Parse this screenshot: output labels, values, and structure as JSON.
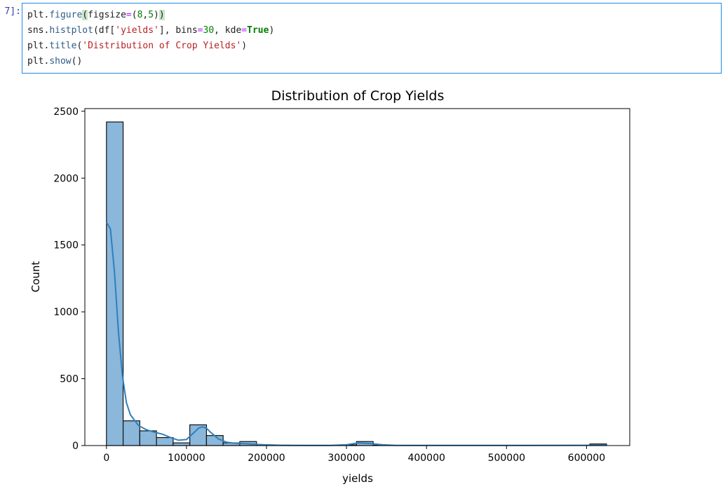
{
  "cell": {
    "prompt": "7]:",
    "lines": [
      [
        {
          "t": "plt",
          "c": ""
        },
        {
          "t": ".",
          "c": ""
        },
        {
          "t": "figure",
          "c": "fn"
        },
        {
          "t": "(",
          "c": "pmatch"
        },
        {
          "t": "figsize",
          "c": ""
        },
        {
          "t": "=",
          "c": "op"
        },
        {
          "t": "(",
          "c": ""
        },
        {
          "t": "8",
          "c": "num"
        },
        {
          "t": ",",
          "c": ""
        },
        {
          "t": "5",
          "c": "num"
        },
        {
          "t": ")",
          "c": ""
        },
        {
          "t": ")",
          "c": "pmatch"
        }
      ],
      [
        {
          "t": "sns",
          "c": ""
        },
        {
          "t": ".",
          "c": ""
        },
        {
          "t": "histplot",
          "c": "fn"
        },
        {
          "t": "(df[",
          "c": ""
        },
        {
          "t": "'yields'",
          "c": "str"
        },
        {
          "t": "], bins",
          "c": ""
        },
        {
          "t": "=",
          "c": "op"
        },
        {
          "t": "30",
          "c": "num"
        },
        {
          "t": ", kde",
          "c": ""
        },
        {
          "t": "=",
          "c": "op"
        },
        {
          "t": "True",
          "c": "kw"
        },
        {
          "t": ")",
          "c": ""
        }
      ],
      [
        {
          "t": "plt",
          "c": ""
        },
        {
          "t": ".",
          "c": ""
        },
        {
          "t": "title",
          "c": "fn"
        },
        {
          "t": "(",
          "c": ""
        },
        {
          "t": "'Distribution of Crop Yields'",
          "c": "str"
        },
        {
          "t": ")",
          "c": ""
        }
      ],
      [
        {
          "t": "plt",
          "c": ""
        },
        {
          "t": ".",
          "c": ""
        },
        {
          "t": "show",
          "c": "fn"
        },
        {
          "t": "()",
          "c": ""
        }
      ]
    ]
  },
  "chart_data": {
    "type": "bar",
    "title": "Distribution of Crop Yields",
    "xlabel": "yields",
    "ylabel": "Count",
    "xlim": [
      -27000,
      654000
    ],
    "ylim": [
      0,
      2520
    ],
    "xticks": [
      0,
      100000,
      200000,
      300000,
      400000,
      500000,
      600000
    ],
    "yticks": [
      0,
      500,
      1000,
      1500,
      2000,
      2500
    ],
    "bin_edges": [
      0,
      20833,
      41667,
      62500,
      83333,
      104167,
      125000,
      145833,
      166667,
      187500,
      208333,
      229167,
      250000,
      270833,
      291667,
      312500,
      333333,
      354167,
      375000,
      395833,
      416667,
      437500,
      458333,
      479167,
      500000,
      520833,
      541667,
      562500,
      583333,
      604167,
      625000
    ],
    "counts": [
      2420,
      185,
      110,
      60,
      20,
      155,
      75,
      20,
      30,
      5,
      3,
      2,
      2,
      1,
      5,
      30,
      3,
      1,
      1,
      0,
      0,
      0,
      0,
      0,
      0,
      0,
      0,
      0,
      0,
      12
    ],
    "kde": {
      "x": [
        0,
        5000,
        10000,
        15000,
        20000,
        25000,
        30000,
        40000,
        50000,
        60000,
        70000,
        80000,
        90000,
        100000,
        110000,
        115000,
        120000,
        125000,
        130000,
        140000,
        150000,
        160000,
        170000,
        180000,
        190000,
        200000,
        220000,
        250000,
        280000,
        300000,
        315000,
        330000,
        345000,
        360000,
        400000,
        500000,
        600000,
        625000
      ],
      "y": [
        1670,
        1620,
        1300,
        850,
        520,
        320,
        230,
        150,
        118,
        100,
        85,
        60,
        40,
        45,
        100,
        130,
        140,
        130,
        100,
        50,
        25,
        18,
        15,
        12,
        8,
        5,
        2,
        1,
        1,
        6,
        20,
        15,
        6,
        2,
        1,
        1,
        2,
        3
      ]
    },
    "bar_color": "#8ab7da",
    "bar_edge_color": "#111111",
    "kde_color": "#2f7fbc",
    "grid": false
  }
}
